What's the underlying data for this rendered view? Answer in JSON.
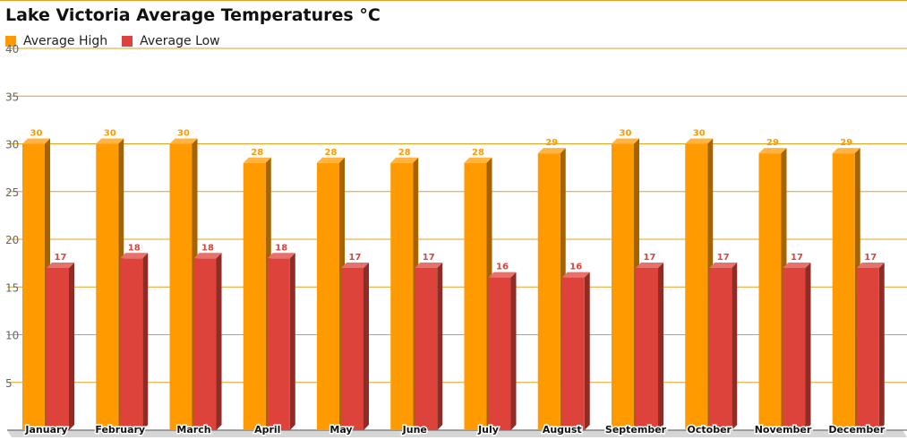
{
  "chart_data": {
    "type": "bar",
    "title": "Lake Victoria Average Temperatures °C",
    "categories": [
      "January",
      "February",
      "March",
      "April",
      "May",
      "June",
      "July",
      "August",
      "September",
      "October",
      "November",
      "December"
    ],
    "series": [
      {
        "name": "Average High",
        "color": "#ff9a00",
        "values": [
          30,
          30,
          30,
          28,
          28,
          28,
          28,
          29,
          30,
          30,
          29,
          29
        ]
      },
      {
        "name": "Average Low",
        "color": "#dd433b",
        "values": [
          17,
          18,
          18,
          18,
          17,
          17,
          16,
          16,
          17,
          17,
          17,
          17
        ]
      }
    ],
    "ylim": [
      0,
      40
    ],
    "yticks": [
      5,
      10,
      15,
      20,
      25,
      30,
      35,
      40
    ],
    "grid": true,
    "legend_position": "top-left",
    "style": "3d-bar"
  }
}
